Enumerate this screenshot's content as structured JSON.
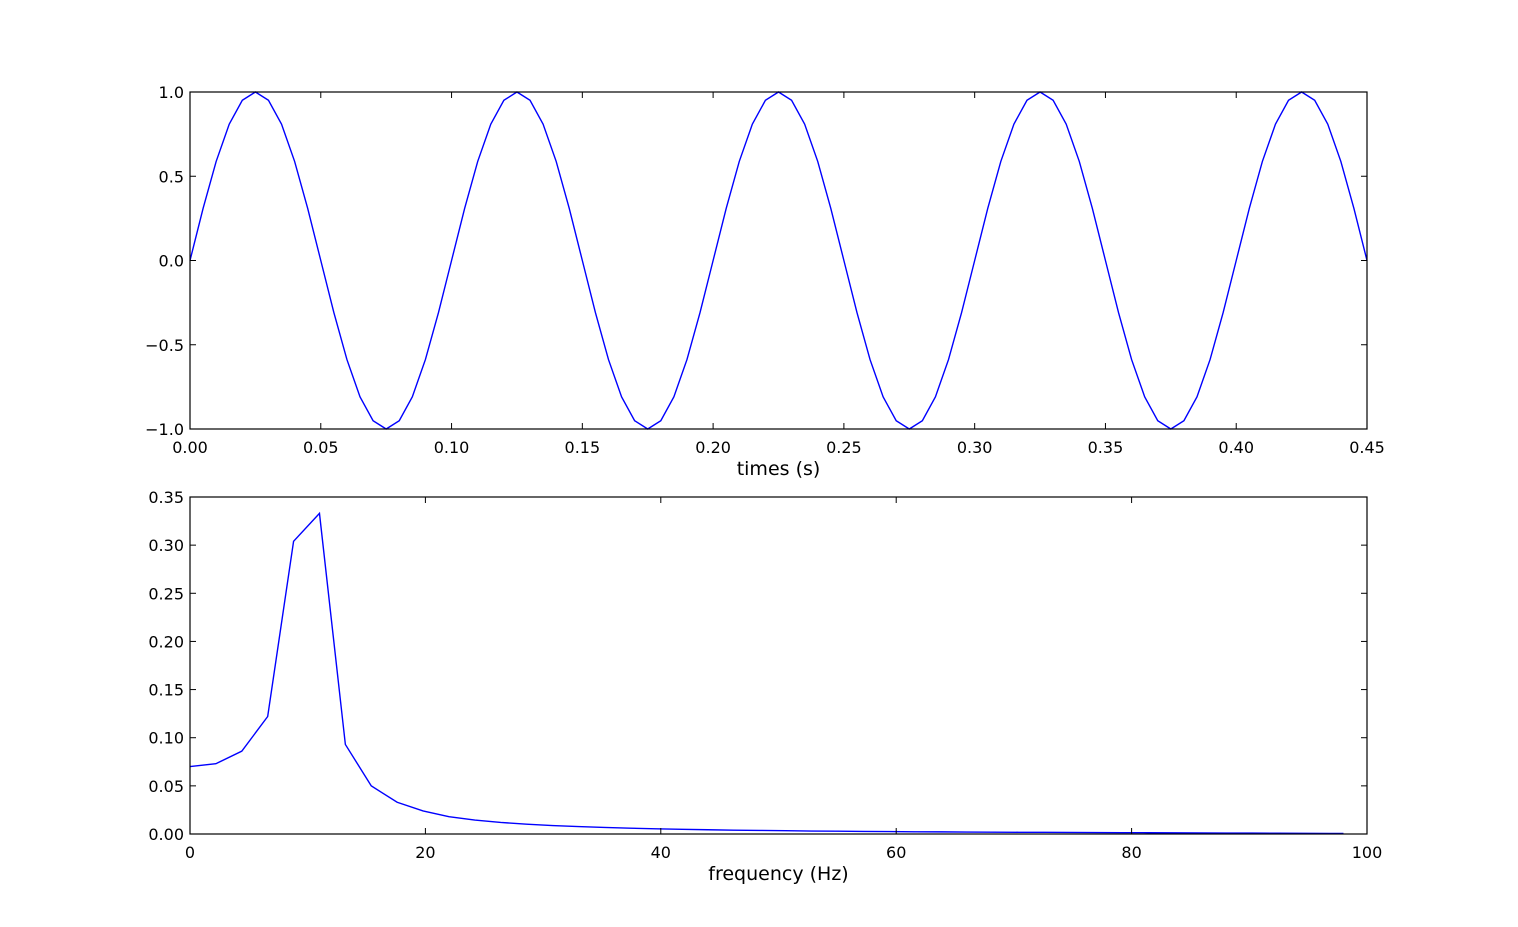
{
  "colors": {
    "line": "#0000ff",
    "axes": "#000000",
    "background": "#ffffff"
  },
  "chart_data": [
    {
      "type": "line",
      "title": "",
      "xlabel": "times (s)",
      "ylabel": "",
      "xlim": [
        0,
        0.45
      ],
      "ylim": [
        -1.0,
        1.0
      ],
      "grid": false,
      "legend": "none",
      "x_ticks": [
        0.0,
        0.05,
        0.1,
        0.15,
        0.2,
        0.25,
        0.3,
        0.35,
        0.4,
        0.45
      ],
      "x_tick_labels": [
        "0.00",
        "0.05",
        "0.10",
        "0.15",
        "0.20",
        "0.25",
        "0.30",
        "0.35",
        "0.40",
        "0.45"
      ],
      "y_ticks": [
        1.0,
        0.5,
        0.0,
        -0.5,
        -1.0
      ],
      "y_tick_labels": [
        "1.0",
        "0.5",
        "0.0",
        "−0.5",
        "−1.0"
      ],
      "series": [
        {
          "color": "#0000ff",
          "x": [
            0.0,
            0.005,
            0.01,
            0.015,
            0.02,
            0.025,
            0.03,
            0.035,
            0.04,
            0.045,
            0.05,
            0.055,
            0.06,
            0.065,
            0.07,
            0.075,
            0.08,
            0.085,
            0.09,
            0.095,
            0.1,
            0.105,
            0.11,
            0.115,
            0.12,
            0.125,
            0.13,
            0.135,
            0.14,
            0.145,
            0.15,
            0.155,
            0.16,
            0.165,
            0.17,
            0.175,
            0.18,
            0.185,
            0.19,
            0.195,
            0.2,
            0.205,
            0.21,
            0.215,
            0.22,
            0.225,
            0.23,
            0.235,
            0.24,
            0.245,
            0.25,
            0.255,
            0.26,
            0.265,
            0.27,
            0.275,
            0.28,
            0.285,
            0.29,
            0.295,
            0.3,
            0.305,
            0.31,
            0.315,
            0.32,
            0.325,
            0.33,
            0.335,
            0.34,
            0.345,
            0.35,
            0.355,
            0.36,
            0.365,
            0.37,
            0.375,
            0.38,
            0.385,
            0.39,
            0.395,
            0.4,
            0.405,
            0.41,
            0.415,
            0.42,
            0.425,
            0.43,
            0.435,
            0.44,
            0.445,
            0.45
          ],
          "y": [
            0.0,
            0.309,
            0.588,
            0.809,
            0.951,
            1.0,
            0.951,
            0.809,
            0.588,
            0.309,
            0.0,
            -0.309,
            -0.588,
            -0.809,
            -0.951,
            -1.0,
            -0.951,
            -0.809,
            -0.588,
            -0.309,
            0.0,
            0.309,
            0.588,
            0.809,
            0.951,
            1.0,
            0.951,
            0.809,
            0.588,
            0.309,
            0.0,
            -0.309,
            -0.588,
            -0.809,
            -0.951,
            -1.0,
            -0.951,
            -0.809,
            -0.588,
            -0.309,
            0.0,
            0.309,
            0.588,
            0.809,
            0.951,
            1.0,
            0.951,
            0.809,
            0.588,
            0.309,
            0.0,
            -0.309,
            -0.588,
            -0.809,
            -0.951,
            -1.0,
            -0.951,
            -0.809,
            -0.588,
            -0.309,
            0.0,
            0.309,
            0.588,
            0.809,
            0.951,
            1.0,
            0.951,
            0.809,
            0.588,
            0.309,
            0.0,
            -0.309,
            -0.588,
            -0.809,
            -0.951,
            -1.0,
            -0.951,
            -0.809,
            -0.588,
            -0.309,
            0.0,
            0.309,
            0.588,
            0.809,
            0.951,
            1.0,
            0.951,
            0.809,
            0.588,
            0.309,
            0.0
          ]
        }
      ]
    },
    {
      "type": "line",
      "title": "",
      "xlabel": "frequency (Hz)",
      "ylabel": "",
      "xlim": [
        0,
        100
      ],
      "ylim": [
        0.0,
        0.35
      ],
      "grid": false,
      "legend": "none",
      "x_ticks": [
        0,
        20,
        40,
        60,
        80,
        100
      ],
      "x_tick_labels": [
        "0",
        "20",
        "40",
        "60",
        "80",
        "100"
      ],
      "y_ticks": [
        0.35,
        0.3,
        0.25,
        0.2,
        0.15,
        0.1,
        0.05,
        0.0
      ],
      "y_tick_labels": [
        "0.35",
        "0.30",
        "0.25",
        "0.20",
        "0.15",
        "0.10",
        "0.05",
        "0.00"
      ],
      "series": [
        {
          "color": "#0000ff",
          "x": [
            0.0,
            2.2,
            4.4,
            6.6,
            8.8,
            11.0,
            13.2,
            15.4,
            17.6,
            19.8,
            22.0,
            24.2,
            26.4,
            28.6,
            30.8,
            33.0,
            35.2,
            37.4,
            39.6,
            41.8,
            44.0,
            46.2,
            48.4,
            50.6,
            52.8,
            55.0,
            57.2,
            59.4,
            61.6,
            63.8,
            66.0,
            68.2,
            70.4,
            72.6,
            74.8,
            77.0,
            79.2,
            81.4,
            83.6,
            85.8,
            88.0,
            90.2,
            92.4,
            94.6,
            96.8,
            98.0
          ],
          "y": [
            0.07,
            0.073,
            0.086,
            0.122,
            0.304,
            0.333,
            0.093,
            0.05,
            0.033,
            0.024,
            0.018,
            0.0145,
            0.012,
            0.0102,
            0.0088,
            0.0077,
            0.0068,
            0.006,
            0.0054,
            0.0049,
            0.0044,
            0.004,
            0.0037,
            0.0034,
            0.0031,
            0.0029,
            0.0027,
            0.0025,
            0.0023,
            0.0022,
            0.002,
            0.0019,
            0.0018,
            0.0017,
            0.0016,
            0.0015,
            0.0014,
            0.0013,
            0.0012,
            0.0011,
            0.001,
            0.0009,
            0.0008,
            0.0007,
            0.0006,
            0.0006
          ]
        }
      ]
    }
  ]
}
